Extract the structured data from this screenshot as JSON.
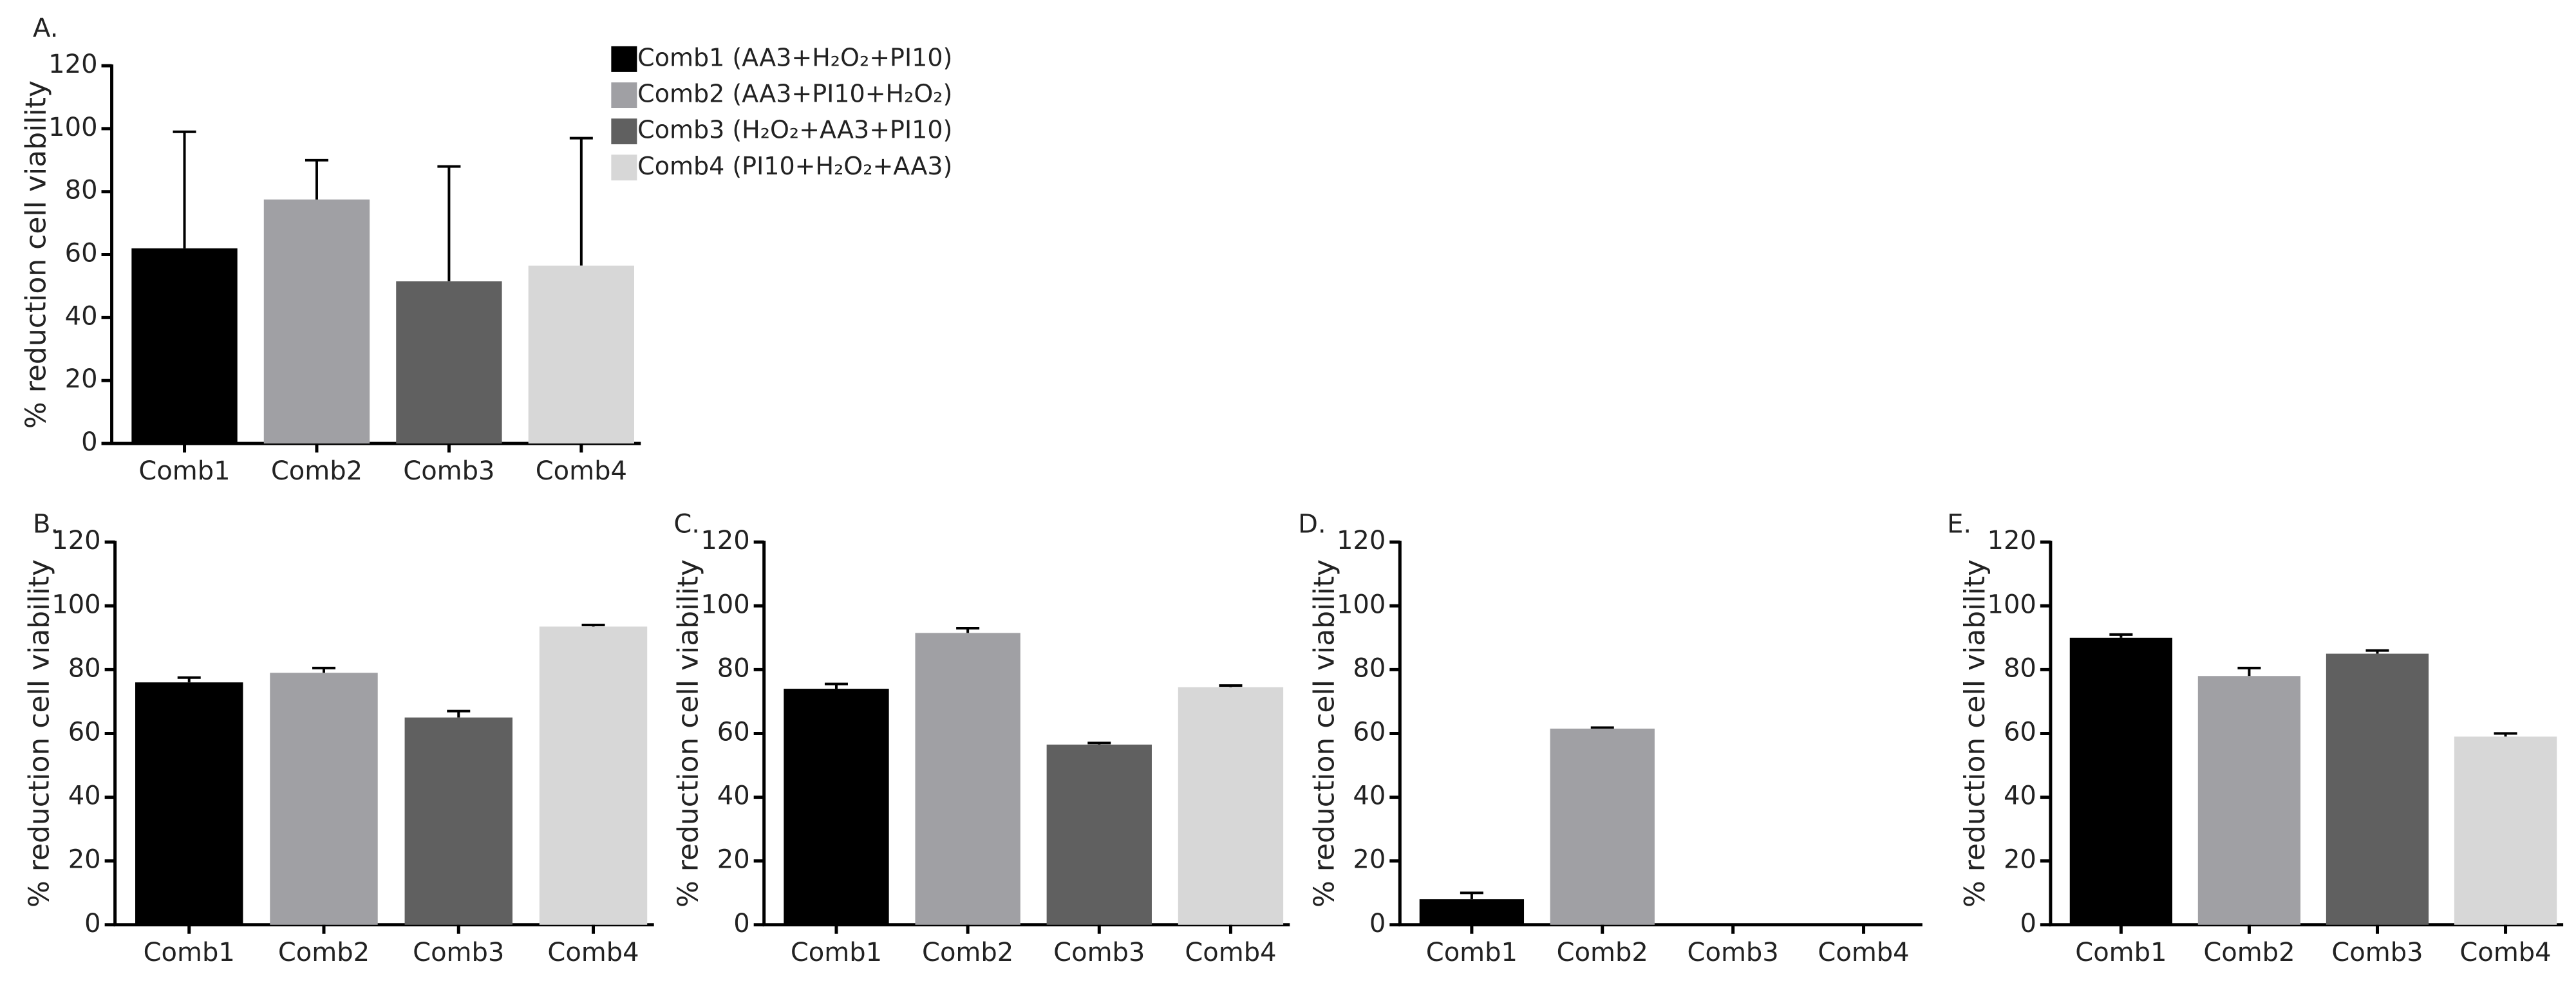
{
  "chart_data": [
    {
      "type": "bar",
      "panel": "A.",
      "ylabel": "% reduction cell viability",
      "categories": [
        "Comb1",
        "Comb2",
        "Comb3",
        "Comb4"
      ],
      "values": [
        62,
        77.5,
        51.5,
        56.5
      ],
      "errors": [
        37,
        12.5,
        36.5,
        40.5
      ],
      "colors": [
        "#000000",
        "#a0a0a4",
        "#606060",
        "#d7d7d7"
      ],
      "ylim": [
        0,
        120
      ],
      "yticks": [
        0,
        20,
        40,
        60,
        80,
        100,
        120
      ],
      "legend": [
        "Comb1 (AA3+H₂O₂+PI10)",
        "Comb2 (AA3+PI10+H₂O₂)",
        "Comb3 (H₂O₂+AA3+PI10)",
        "Comb4 (PI10+H₂O₂+AA3)"
      ]
    },
    {
      "type": "bar",
      "panel": "B.",
      "ylabel": "% reduction cell viability",
      "categories": [
        "Comb1",
        "Comb2",
        "Comb3",
        "Comb4"
      ],
      "values": [
        76,
        79,
        65,
        93.5
      ],
      "errors": [
        1.5,
        1.5,
        2,
        0.5
      ],
      "colors": [
        "#000000",
        "#a0a0a4",
        "#606060",
        "#d7d7d7"
      ],
      "ylim": [
        0,
        120
      ],
      "yticks": [
        0,
        20,
        40,
        60,
        80,
        100,
        120
      ]
    },
    {
      "type": "bar",
      "panel": "C.",
      "ylabel": "% reduction cell viability",
      "categories": [
        "Comb1",
        "Comb2",
        "Comb3",
        "Comb4"
      ],
      "values": [
        74,
        91.5,
        56.5,
        74.5
      ],
      "errors": [
        1.5,
        1.5,
        0.5,
        0.5
      ],
      "colors": [
        "#000000",
        "#a0a0a4",
        "#606060",
        "#d7d7d7"
      ],
      "ylim": [
        0,
        120
      ],
      "yticks": [
        0,
        20,
        40,
        60,
        80,
        100,
        120
      ]
    },
    {
      "type": "bar",
      "panel": "D.",
      "ylabel": "% reduction cell viability",
      "categories": [
        "Comb1",
        "Comb2",
        "Comb3",
        "Comb4"
      ],
      "values": [
        8,
        61.5,
        0,
        0
      ],
      "errors": [
        2,
        0.3,
        0,
        0
      ],
      "colors": [
        "#000000",
        "#a0a0a4",
        "#606060",
        "#d7d7d7"
      ],
      "ylim": [
        0,
        120
      ],
      "yticks": [
        0,
        20,
        40,
        60,
        80,
        100,
        120
      ]
    },
    {
      "type": "bar",
      "panel": "E.",
      "ylabel": "% reduction cell viability",
      "categories": [
        "Comb1",
        "Comb2",
        "Comb3",
        "Comb4"
      ],
      "values": [
        90,
        78,
        85,
        59
      ],
      "errors": [
        1,
        2.5,
        1,
        1
      ],
      "colors": [
        "#000000",
        "#a0a0a4",
        "#606060",
        "#d7d7d7"
      ],
      "ylim": [
        0,
        120
      ],
      "yticks": [
        0,
        20,
        40,
        60,
        80,
        100,
        120
      ]
    }
  ]
}
